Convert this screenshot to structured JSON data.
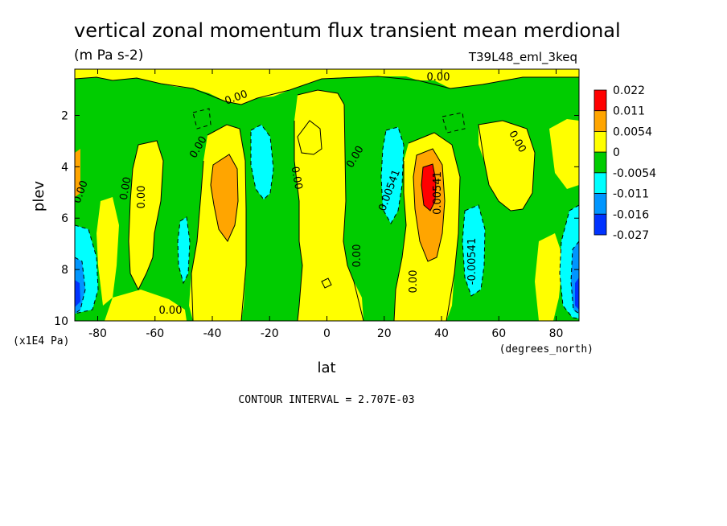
{
  "chart_data": {
    "type": "heatmap",
    "title": "vertical zonal momentum flux transient mean merdional",
    "units": "(m Pa s-2)",
    "run_label": "T39L48_eml_3keq",
    "xlabel": "lat",
    "xunit": "(degrees_north)",
    "ylabel": "plev",
    "yunit": "(x1E4 Pa)",
    "footer": "CONTOUR INTERVAL = 2.707E-03",
    "xlim": [
      -88,
      88
    ],
    "ylim": [
      0.2,
      10
    ],
    "y_inverted": true,
    "x_ticks": [
      "-80",
      "-60",
      "-40",
      "-20",
      "0",
      "20",
      "40",
      "60",
      "80"
    ],
    "x_tick_values": [
      -80,
      -60,
      -40,
      -20,
      0,
      20,
      40,
      60,
      80
    ],
    "y_ticks": [
      "2",
      "4",
      "6",
      "8",
      "10"
    ],
    "y_tick_values": [
      2,
      4,
      6,
      8,
      10
    ],
    "legend": {
      "placement": "right",
      "labels": [
        "0.022",
        "0.011",
        "0.0054",
        "0",
        "-0.0054",
        "-0.011",
        "-0.016",
        "-0.027"
      ],
      "colors": [
        "#ff0000",
        "#ffa500",
        "#ffff00",
        "#00cc00",
        "#00ffff",
        "#0096ff",
        "#0033ff"
      ]
    },
    "contour_labels": [
      "0.00",
      "0.00",
      "0.00",
      "0.00",
      "0.00",
      "0.00",
      "0.00",
      "0.00",
      "0.00",
      "0.00",
      "0.00",
      "0.00",
      "0.00541",
      "0.00541",
      "-0.00541"
    ],
    "features": [
      {
        "lat": -37,
        "plev": 5.0,
        "value": 0.008
      },
      {
        "lat": -24,
        "plev": 4.0,
        "value": -0.009
      },
      {
        "lat": 22,
        "plev": 4.3,
        "value": -0.008
      },
      {
        "lat": 35,
        "plev": 4.8,
        "value": 0.017
      },
      {
        "lat": 50,
        "plev": 7.2,
        "value": -0.009
      },
      {
        "lat": -50,
        "plev": 7.5,
        "value": -0.005
      },
      {
        "lat": -86,
        "plev": 8.5,
        "value": -0.016
      },
      {
        "lat": 86,
        "plev": 8.5,
        "value": -0.014
      },
      {
        "lat": 0,
        "plev": 3.5,
        "value": 0.002
      },
      {
        "lat": 65,
        "plev": 4.5,
        "value": 0.002
      }
    ]
  }
}
